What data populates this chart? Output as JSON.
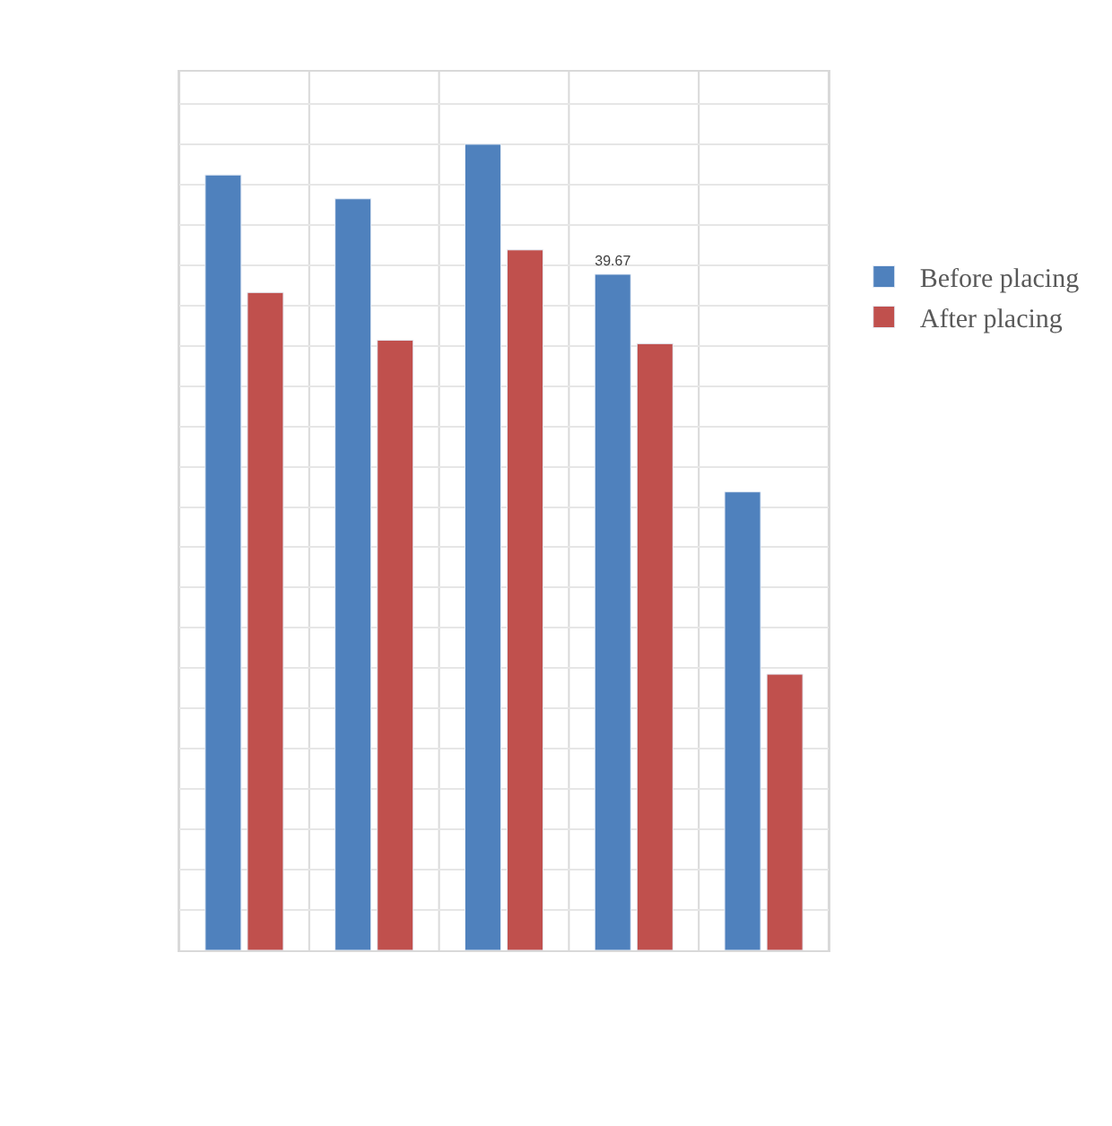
{
  "chart_data": {
    "type": "bar",
    "categories": [
      null,
      null,
      null,
      null,
      null
    ],
    "series": [
      {
        "name": "Before placing",
        "color": "#4f81bd",
        "values": [
          45.5,
          44.1,
          47.3,
          39.67,
          26.9
        ],
        "value_labels": [
          null,
          null,
          null,
          "39.67",
          null
        ]
      },
      {
        "name": "After placing",
        "color": "#c0504d",
        "values": [
          38.6,
          35.8,
          41.1,
          35.6,
          16.2
        ]
      }
    ],
    "grid": true,
    "legend": "right",
    "tick_labels": false
  }
}
